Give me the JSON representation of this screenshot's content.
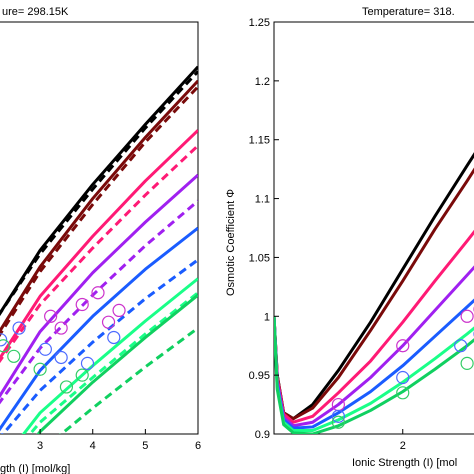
{
  "chart_data": [
    {
      "type": "line",
      "title": "ure= 298.15K",
      "xlabel": "gth (I) [mol/kg]",
      "ylabel": "",
      "xlim": [
        2.2,
        6
      ],
      "ylim": [
        0.9,
        1.25
      ],
      "xticks": [
        3,
        4,
        5,
        6
      ],
      "x_tick_labels": [
        "3",
        "4",
        "5",
        "6"
      ],
      "yticks": [],
      "grid": false,
      "legend": "none",
      "series": [
        {
          "color": "#000000",
          "x": [
            2.2,
            3,
            4,
            5,
            6
          ],
          "y": [
            1.0,
            1.056,
            1.112,
            1.163,
            1.212
          ],
          "dashed_y": [
            1.0,
            1.053,
            1.108,
            1.16,
            1.208
          ]
        },
        {
          "color": "#7a0a0a",
          "x": [
            2.2,
            3,
            4,
            5,
            6
          ],
          "y": [
            0.985,
            1.042,
            1.1,
            1.152,
            1.2
          ],
          "dashed_y": [
            0.982,
            1.038,
            1.095,
            1.148,
            1.195
          ]
        },
        {
          "color": "#ff1a75",
          "x": [
            2.2,
            3,
            4,
            5,
            6
          ],
          "y": [
            0.962,
            1.017,
            1.068,
            1.115,
            1.158
          ],
          "dashed_y": [
            0.96,
            1.01,
            1.058,
            1.103,
            1.145
          ]
        },
        {
          "color": "#a020f0",
          "x": [
            2.2,
            3,
            4,
            5,
            6
          ],
          "y": [
            0.93,
            0.987,
            1.037,
            1.08,
            1.12
          ],
          "dashed_y": [
            0.925,
            0.973,
            1.018,
            1.06,
            1.098
          ]
        },
        {
          "color": "#1a5cff",
          "x": [
            2.2,
            3,
            4,
            5,
            6
          ],
          "y": [
            0.902,
            0.954,
            1.0,
            1.04,
            1.075
          ],
          "dashed_y": [
            0.895,
            0.937,
            0.978,
            1.015,
            1.048
          ]
        },
        {
          "color": "#1aff88",
          "x": [
            2.2,
            3,
            4,
            5,
            6
          ],
          "y": [
            0.872,
            0.918,
            0.958,
            0.996,
            1.032
          ],
          "dashed_y": [
            0.868,
            0.91,
            0.948,
            0.985,
            1.02
          ]
        },
        {
          "color": "#10d060",
          "x": [
            2.2,
            3,
            4,
            5,
            6
          ],
          "y": [
            0.855,
            0.902,
            0.944,
            0.982,
            1.018
          ],
          "dashed_y": [
            0.85,
            0.885,
            0.922,
            0.957,
            0.99
          ]
        }
      ],
      "markers": [
        {
          "color": "#cc33cc",
          "points": [
            [
              3.2,
              1.0
            ],
            [
              3.4,
              0.99
            ],
            [
              3.8,
              1.01
            ],
            [
              4.1,
              1.02
            ],
            [
              4.3,
              0.995
            ],
            [
              4.5,
              1.005
            ]
          ]
        },
        {
          "color": "#4d6bff",
          "points": [
            [
              2.25,
              0.98
            ],
            [
              2.6,
              0.99
            ],
            [
              3.1,
              0.972
            ],
            [
              3.4,
              0.965
            ],
            [
              3.9,
              0.96
            ],
            [
              4.4,
              0.982
            ]
          ]
        },
        {
          "color": "#33cc66",
          "points": [
            [
              2.3,
              0.975
            ],
            [
              2.5,
              0.966
            ],
            [
              3.0,
              0.955
            ],
            [
              3.5,
              0.94
            ],
            [
              3.8,
              0.95
            ]
          ]
        }
      ]
    },
    {
      "type": "line",
      "title": "Temperature= 318.",
      "xlabel": "Ionic Strength (I) [mol",
      "ylabel": "Osmotic Coefficient Φ",
      "xlim": [
        0,
        3.2
      ],
      "ylim": [
        0.9,
        1.25
      ],
      "xticks": [
        2
      ],
      "x_tick_labels": [
        "2"
      ],
      "yticks": [
        0.9,
        0.95,
        1,
        1.05,
        1.1,
        1.15,
        1.2,
        1.25
      ],
      "y_tick_labels": [
        "0.9",
        "0.95",
        "1",
        "1.05",
        "1.1",
        "1.15",
        "1.2",
        "1.25"
      ],
      "grid": false,
      "legend": "none",
      "series": [
        {
          "color": "#000000",
          "x": [
            0,
            0.05,
            0.15,
            0.3,
            0.6,
            1.0,
            1.5,
            2.0,
            2.5,
            3.0,
            3.2
          ],
          "y": [
            1.0,
            0.95,
            0.918,
            0.913,
            0.925,
            0.954,
            0.995,
            1.04,
            1.085,
            1.128,
            1.145
          ]
        },
        {
          "color": "#7a0a0a",
          "x": [
            0,
            0.05,
            0.15,
            0.3,
            0.6,
            1.0,
            1.5,
            2.0,
            2.5,
            3.0,
            3.2
          ],
          "y": [
            1.0,
            0.95,
            0.918,
            0.913,
            0.922,
            0.948,
            0.988,
            1.03,
            1.074,
            1.115,
            1.132
          ]
        },
        {
          "color": "#ff1a75",
          "x": [
            0,
            0.05,
            0.15,
            0.3,
            0.6,
            1.0,
            1.5,
            2.0,
            2.5,
            3.0,
            3.2
          ],
          "y": [
            1.0,
            0.948,
            0.917,
            0.91,
            0.915,
            0.935,
            0.962,
            0.995,
            1.03,
            1.064,
            1.078
          ]
        },
        {
          "color": "#a020f0",
          "x": [
            0,
            0.05,
            0.15,
            0.3,
            0.6,
            1.0,
            1.5,
            2.0,
            2.5,
            3.0,
            3.2
          ],
          "y": [
            1.0,
            0.945,
            0.914,
            0.907,
            0.91,
            0.925,
            0.948,
            0.975,
            1.005,
            1.035,
            1.047
          ]
        },
        {
          "color": "#1a5cff",
          "x": [
            0,
            0.05,
            0.15,
            0.3,
            0.6,
            1.0,
            1.5,
            2.0,
            2.5,
            3.0,
            3.2
          ],
          "y": [
            1.0,
            0.943,
            0.912,
            0.905,
            0.906,
            0.918,
            0.936,
            0.958,
            0.983,
            1.008,
            1.018
          ]
        },
        {
          "color": "#1aff88",
          "x": [
            0,
            0.05,
            0.15,
            0.3,
            0.6,
            1.0,
            1.5,
            2.0,
            2.5,
            3.0,
            3.2
          ],
          "y": [
            1.0,
            0.94,
            0.91,
            0.903,
            0.903,
            0.912,
            0.926,
            0.944,
            0.964,
            0.985,
            0.994
          ]
        },
        {
          "color": "#10d060",
          "x": [
            0,
            0.05,
            0.15,
            0.3,
            0.6,
            1.0,
            1.5,
            2.0,
            2.5,
            3.0,
            3.2
          ],
          "y": [
            1.0,
            0.938,
            0.908,
            0.901,
            0.9,
            0.907,
            0.92,
            0.936,
            0.955,
            0.975,
            0.984
          ]
        }
      ],
      "markers": [
        {
          "color": "#cc33cc",
          "points": [
            [
              1.0,
              0.925
            ],
            [
              2.0,
              0.975
            ],
            [
              3.0,
              1.0
            ],
            [
              3.2,
              1.006
            ]
          ]
        },
        {
          "color": "#4d6bff",
          "points": [
            [
              1.0,
              0.915
            ],
            [
              2.0,
              0.948
            ],
            [
              2.9,
              0.975
            ],
            [
              3.2,
              0.985
            ]
          ]
        },
        {
          "color": "#33cc66",
          "points": [
            [
              1.0,
              0.91
            ],
            [
              2.0,
              0.935
            ],
            [
              3.0,
              0.96
            ]
          ]
        }
      ]
    }
  ]
}
